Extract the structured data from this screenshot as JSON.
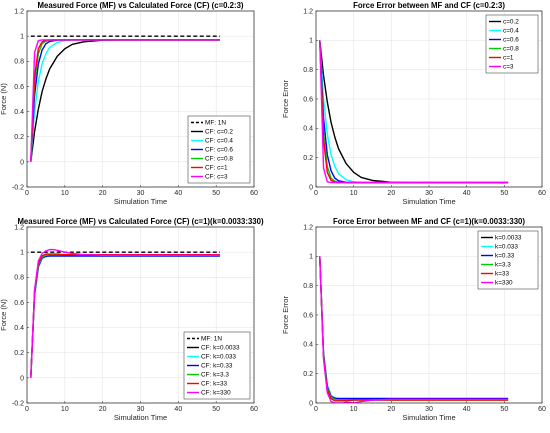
{
  "chart_data": [
    {
      "type": "line",
      "title": "Measured Force (MF) vs Calculated Force (CF) (c=0.2:3)",
      "xlabel": "Simulation Time",
      "ylabel": "Force (N)",
      "xlim": [
        0,
        60
      ],
      "ylim": [
        -0.2,
        1.2
      ],
      "xticks": [
        0,
        10,
        20,
        30,
        40,
        50,
        60
      ],
      "yticks": [
        -0.2,
        0,
        0.2,
        0.4,
        0.6,
        0.8,
        1,
        1.2
      ],
      "grid": true,
      "legend_position": "bottom-right",
      "series": [
        {
          "name": "MF: 1N",
          "color": "#000000",
          "dash": true,
          "x": [
            1,
            51
          ],
          "y": [
            1,
            1
          ]
        },
        {
          "name": "CF: c=0.2",
          "color": "#000000",
          "x": [
            1,
            2,
            3,
            4,
            5,
            6,
            8,
            10,
            12,
            15,
            20,
            25,
            30,
            40,
            51
          ],
          "y": [
            0,
            0.24,
            0.42,
            0.56,
            0.66,
            0.74,
            0.84,
            0.9,
            0.935,
            0.955,
            0.968,
            0.97,
            0.97,
            0.97,
            0.97
          ]
        },
        {
          "name": "CF: c=0.4",
          "color": "#00ffff",
          "x": [
            1,
            2,
            3,
            4,
            5,
            6,
            8,
            10,
            12,
            15,
            20,
            30,
            51
          ],
          "y": [
            0,
            0.4,
            0.64,
            0.78,
            0.86,
            0.91,
            0.95,
            0.965,
            0.97,
            0.97,
            0.97,
            0.97,
            0.97
          ]
        },
        {
          "name": "CF: c=0.6",
          "color": "#0000ff",
          "x": [
            1,
            2,
            3,
            4,
            5,
            6,
            8,
            10,
            15,
            30,
            51
          ],
          "y": [
            0,
            0.53,
            0.78,
            0.89,
            0.94,
            0.958,
            0.968,
            0.97,
            0.97,
            0.97,
            0.97
          ]
        },
        {
          "name": "CF: c=0.8",
          "color": "#00cc00",
          "x": [
            1,
            2,
            3,
            4,
            5,
            6,
            8,
            10,
            30,
            51
          ],
          "y": [
            0,
            0.62,
            0.86,
            0.94,
            0.96,
            0.968,
            0.97,
            0.97,
            0.97,
            0.97
          ]
        },
        {
          "name": "CF: c=1",
          "color": "#ff0000",
          "x": [
            1,
            2,
            3,
            4,
            5,
            6,
            10,
            30,
            51
          ],
          "y": [
            0,
            0.68,
            0.9,
            0.955,
            0.968,
            0.97,
            0.97,
            0.97,
            0.97
          ]
        },
        {
          "name": "CF: c=3",
          "color": "#ff00ff",
          "x": [
            1,
            2,
            3,
            4,
            5,
            10,
            30,
            51
          ],
          "y": [
            0,
            0.87,
            0.965,
            0.97,
            0.97,
            0.97,
            0.97,
            0.97
          ]
        }
      ]
    },
    {
      "type": "line",
      "title": "Force Error between MF and CF (c=0.2:3)",
      "xlabel": "Simulation Time",
      "ylabel": "Force Error",
      "xlim": [
        0,
        60
      ],
      "ylim": [
        0,
        1.2
      ],
      "xticks": [
        0,
        10,
        20,
        30,
        40,
        50,
        60
      ],
      "yticks": [
        0,
        0.2,
        0.4,
        0.6,
        0.8,
        1,
        1.2
      ],
      "grid": true,
      "legend_position": "top-right",
      "series": [
        {
          "name": "c=0.2",
          "color": "#000000",
          "x": [
            1,
            2,
            3,
            4,
            5,
            6,
            8,
            10,
            12,
            15,
            20,
            25,
            30,
            40,
            51
          ],
          "y": [
            1,
            0.76,
            0.58,
            0.44,
            0.34,
            0.26,
            0.16,
            0.1,
            0.065,
            0.045,
            0.032,
            0.03,
            0.03,
            0.03,
            0.03
          ]
        },
        {
          "name": "c=0.4",
          "color": "#00ffff",
          "x": [
            1,
            2,
            3,
            4,
            5,
            6,
            8,
            10,
            12,
            15,
            20,
            30,
            51
          ],
          "y": [
            1,
            0.6,
            0.36,
            0.22,
            0.14,
            0.09,
            0.05,
            0.035,
            0.03,
            0.03,
            0.03,
            0.03,
            0.03
          ]
        },
        {
          "name": "c=0.6",
          "color": "#0000ff",
          "x": [
            1,
            2,
            3,
            4,
            5,
            6,
            8,
            10,
            15,
            30,
            51
          ],
          "y": [
            1,
            0.47,
            0.22,
            0.11,
            0.06,
            0.042,
            0.032,
            0.03,
            0.03,
            0.03,
            0.03
          ]
        },
        {
          "name": "c=0.8",
          "color": "#00cc00",
          "x": [
            1,
            2,
            3,
            4,
            5,
            6,
            8,
            10,
            30,
            51
          ],
          "y": [
            1,
            0.38,
            0.14,
            0.06,
            0.04,
            0.032,
            0.03,
            0.03,
            0.03,
            0.03
          ]
        },
        {
          "name": "c=1",
          "color": "#ff0000",
          "x": [
            1,
            2,
            3,
            4,
            5,
            6,
            10,
            30,
            51
          ],
          "y": [
            1,
            0.32,
            0.1,
            0.045,
            0.032,
            0.03,
            0.03,
            0.03,
            0.03
          ]
        },
        {
          "name": "c=3",
          "color": "#ff00ff",
          "x": [
            1,
            2,
            3,
            4,
            5,
            10,
            30,
            51
          ],
          "y": [
            1,
            0.13,
            0.035,
            0.03,
            0.03,
            0.03,
            0.03,
            0.03
          ]
        }
      ]
    },
    {
      "type": "line",
      "title": "Measured Force (MF) vs Calculated Force (CF) (c=1)(k=0.0033:330)",
      "xlabel": "Simulation Time",
      "ylabel": "Force (N)",
      "xlim": [
        0,
        60
      ],
      "ylim": [
        -0.2,
        1.2
      ],
      "xticks": [
        0,
        10,
        20,
        30,
        40,
        50,
        60
      ],
      "yticks": [
        -0.2,
        0,
        0.2,
        0.4,
        0.6,
        0.8,
        1,
        1.2
      ],
      "grid": true,
      "legend_position": "bottom-right",
      "series": [
        {
          "name": "MF: 1N",
          "color": "#000000",
          "dash": true,
          "x": [
            1,
            51
          ],
          "y": [
            1,
            1
          ]
        },
        {
          "name": "CF: k=0.0033",
          "color": "#000000",
          "x": [
            1,
            2,
            3,
            4,
            5,
            6,
            8,
            10,
            15,
            30,
            51
          ],
          "y": [
            0,
            0.66,
            0.88,
            0.95,
            0.965,
            0.97,
            0.97,
            0.97,
            0.97,
            0.97,
            0.97
          ]
        },
        {
          "name": "CF: k=0.033",
          "color": "#00ffff",
          "x": [
            1,
            2,
            3,
            4,
            5,
            6,
            8,
            10,
            15,
            30,
            51
          ],
          "y": [
            0,
            0.66,
            0.88,
            0.95,
            0.965,
            0.97,
            0.97,
            0.97,
            0.97,
            0.97,
            0.97
          ]
        },
        {
          "name": "CF: k=0.33",
          "color": "#0000ff",
          "x": [
            1,
            2,
            3,
            4,
            5,
            6,
            8,
            10,
            15,
            30,
            51
          ],
          "y": [
            0,
            0.67,
            0.89,
            0.955,
            0.968,
            0.97,
            0.97,
            0.97,
            0.97,
            0.97,
            0.97
          ]
        },
        {
          "name": "CF: k=3.3",
          "color": "#00cc00",
          "x": [
            1,
            2,
            3,
            4,
            5,
            6,
            8,
            10,
            15,
            30,
            51
          ],
          "y": [
            0,
            0.68,
            0.9,
            0.96,
            0.975,
            0.98,
            0.98,
            0.98,
            0.98,
            0.98,
            0.98
          ]
        },
        {
          "name": "CF: k=33",
          "color": "#ff0000",
          "x": [
            1,
            2,
            3,
            4,
            5,
            6,
            8,
            10,
            15,
            30,
            51
          ],
          "y": [
            0,
            0.69,
            0.91,
            0.97,
            0.985,
            0.985,
            0.985,
            0.98,
            0.98,
            0.98,
            0.98
          ]
        },
        {
          "name": "CF: k=330",
          "color": "#ff00ff",
          "x": [
            1,
            2,
            3,
            4,
            5,
            6,
            7,
            8,
            10,
            12,
            15,
            20,
            30,
            51
          ],
          "y": [
            0,
            0.7,
            0.93,
            0.99,
            1.01,
            1.02,
            1.02,
            1.015,
            1.0,
            0.99,
            0.98,
            0.975,
            0.975,
            0.975
          ]
        }
      ]
    },
    {
      "type": "line",
      "title": "Force Error between MF and CF (c=1)(k=0.0033:330)",
      "xlabel": "Simulation Time",
      "ylabel": "Force Error",
      "xlim": [
        0,
        60
      ],
      "ylim": [
        0,
        1.2
      ],
      "xticks": [
        0,
        10,
        20,
        30,
        40,
        50,
        60
      ],
      "yticks": [
        0,
        0.2,
        0.4,
        0.6,
        0.8,
        1,
        1.2
      ],
      "grid": true,
      "legend_position": "top-right",
      "series": [
        {
          "name": "k=0.0033",
          "color": "#000000",
          "x": [
            1,
            2,
            3,
            4,
            5,
            6,
            8,
            10,
            15,
            30,
            51
          ],
          "y": [
            1,
            0.34,
            0.12,
            0.05,
            0.035,
            0.03,
            0.03,
            0.03,
            0.03,
            0.03,
            0.03
          ]
        },
        {
          "name": "k=0.033",
          "color": "#00ffff",
          "x": [
            1,
            2,
            3,
            4,
            5,
            6,
            8,
            10,
            15,
            30,
            51
          ],
          "y": [
            1,
            0.34,
            0.12,
            0.05,
            0.035,
            0.03,
            0.03,
            0.03,
            0.03,
            0.03,
            0.03
          ]
        },
        {
          "name": "k=0.33",
          "color": "#0000ff",
          "x": [
            1,
            2,
            3,
            4,
            5,
            6,
            8,
            10,
            15,
            30,
            51
          ],
          "y": [
            1,
            0.33,
            0.11,
            0.045,
            0.032,
            0.03,
            0.03,
            0.03,
            0.03,
            0.03,
            0.03
          ]
        },
        {
          "name": "k=3.3",
          "color": "#00cc00",
          "x": [
            1,
            2,
            3,
            4,
            5,
            6,
            8,
            10,
            15,
            30,
            51
          ],
          "y": [
            1,
            0.32,
            0.1,
            0.04,
            0.025,
            0.02,
            0.02,
            0.02,
            0.02,
            0.02,
            0.02
          ]
        },
        {
          "name": "k=33",
          "color": "#ff0000",
          "x": [
            1,
            2,
            3,
            4,
            5,
            6,
            8,
            10,
            15,
            30,
            51
          ],
          "y": [
            1,
            0.31,
            0.09,
            0.03,
            0.015,
            0.015,
            0.015,
            0.02,
            0.02,
            0.02,
            0.02
          ]
        },
        {
          "name": "k=330",
          "color": "#ff00ff",
          "x": [
            1,
            2,
            3,
            4,
            5,
            6,
            7,
            8,
            10,
            12,
            15,
            20,
            30,
            51
          ],
          "y": [
            1,
            0.3,
            0.07,
            0.01,
            0.0,
            0.0,
            0.0,
            0.005,
            0.0,
            0.01,
            0.02,
            0.025,
            0.025,
            0.025
          ]
        }
      ]
    }
  ]
}
